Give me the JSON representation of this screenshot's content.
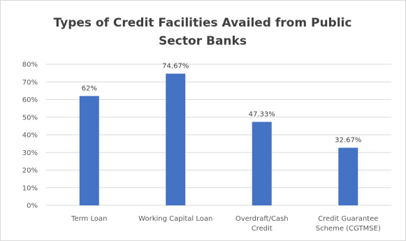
{
  "chart_data": {
    "type": "bar",
    "title_lines": [
      "Types of Credit Facilities Availed from Public",
      "Sector Banks"
    ],
    "categories": [
      [
        "Term Loan"
      ],
      [
        "Working Capital Loan"
      ],
      [
        "Overdraft/Cash",
        "Credit"
      ],
      [
        "Credit Guarantee",
        "Scheme (CGTMSE)"
      ]
    ],
    "values": [
      62,
      74.67,
      47.33,
      32.67
    ],
    "data_labels": [
      "62%",
      "74.67%",
      "47.33%",
      "32.67%"
    ],
    "ylim": [
      0,
      80
    ],
    "y_ticks": [
      "0%",
      "10%",
      "20%",
      "30%",
      "40%",
      "50%",
      "60%",
      "70%",
      "80%"
    ],
    "grid": true,
    "bar_color": "#4472c4",
    "grid_color": "#d9d9d9"
  }
}
